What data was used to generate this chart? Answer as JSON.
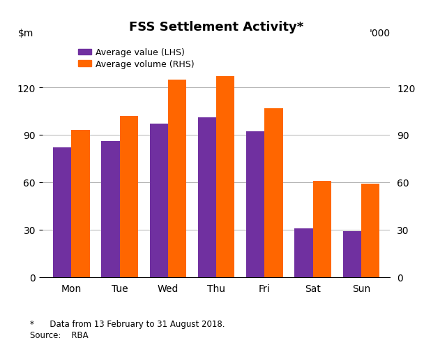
{
  "title": "FSS Settlement Activity*",
  "days": [
    "Mon",
    "Tue",
    "Wed",
    "Thu",
    "Fri",
    "Sat",
    "Sun"
  ],
  "avg_value_lhs": [
    82,
    86,
    97,
    101,
    92,
    31,
    29
  ],
  "avg_volume_rhs": [
    93,
    102,
    125,
    127,
    107,
    61,
    59
  ],
  "color_value": "#7030A0",
  "color_volume": "#FF6600",
  "ylabel_right": "'000",
  "ylim_left": [
    0,
    150
  ],
  "ylim_right": [
    0,
    150
  ],
  "yticks": [
    0,
    30,
    60,
    90,
    120
  ],
  "legend_value": "Average value (LHS)",
  "legend_volume": "Average volume (RHS)",
  "footnote": "*      Data from 13 February to 31 August 2018.",
  "source": "Source:    RBA",
  "background_color": "#ffffff",
  "grid_color": "#b0b0b0"
}
